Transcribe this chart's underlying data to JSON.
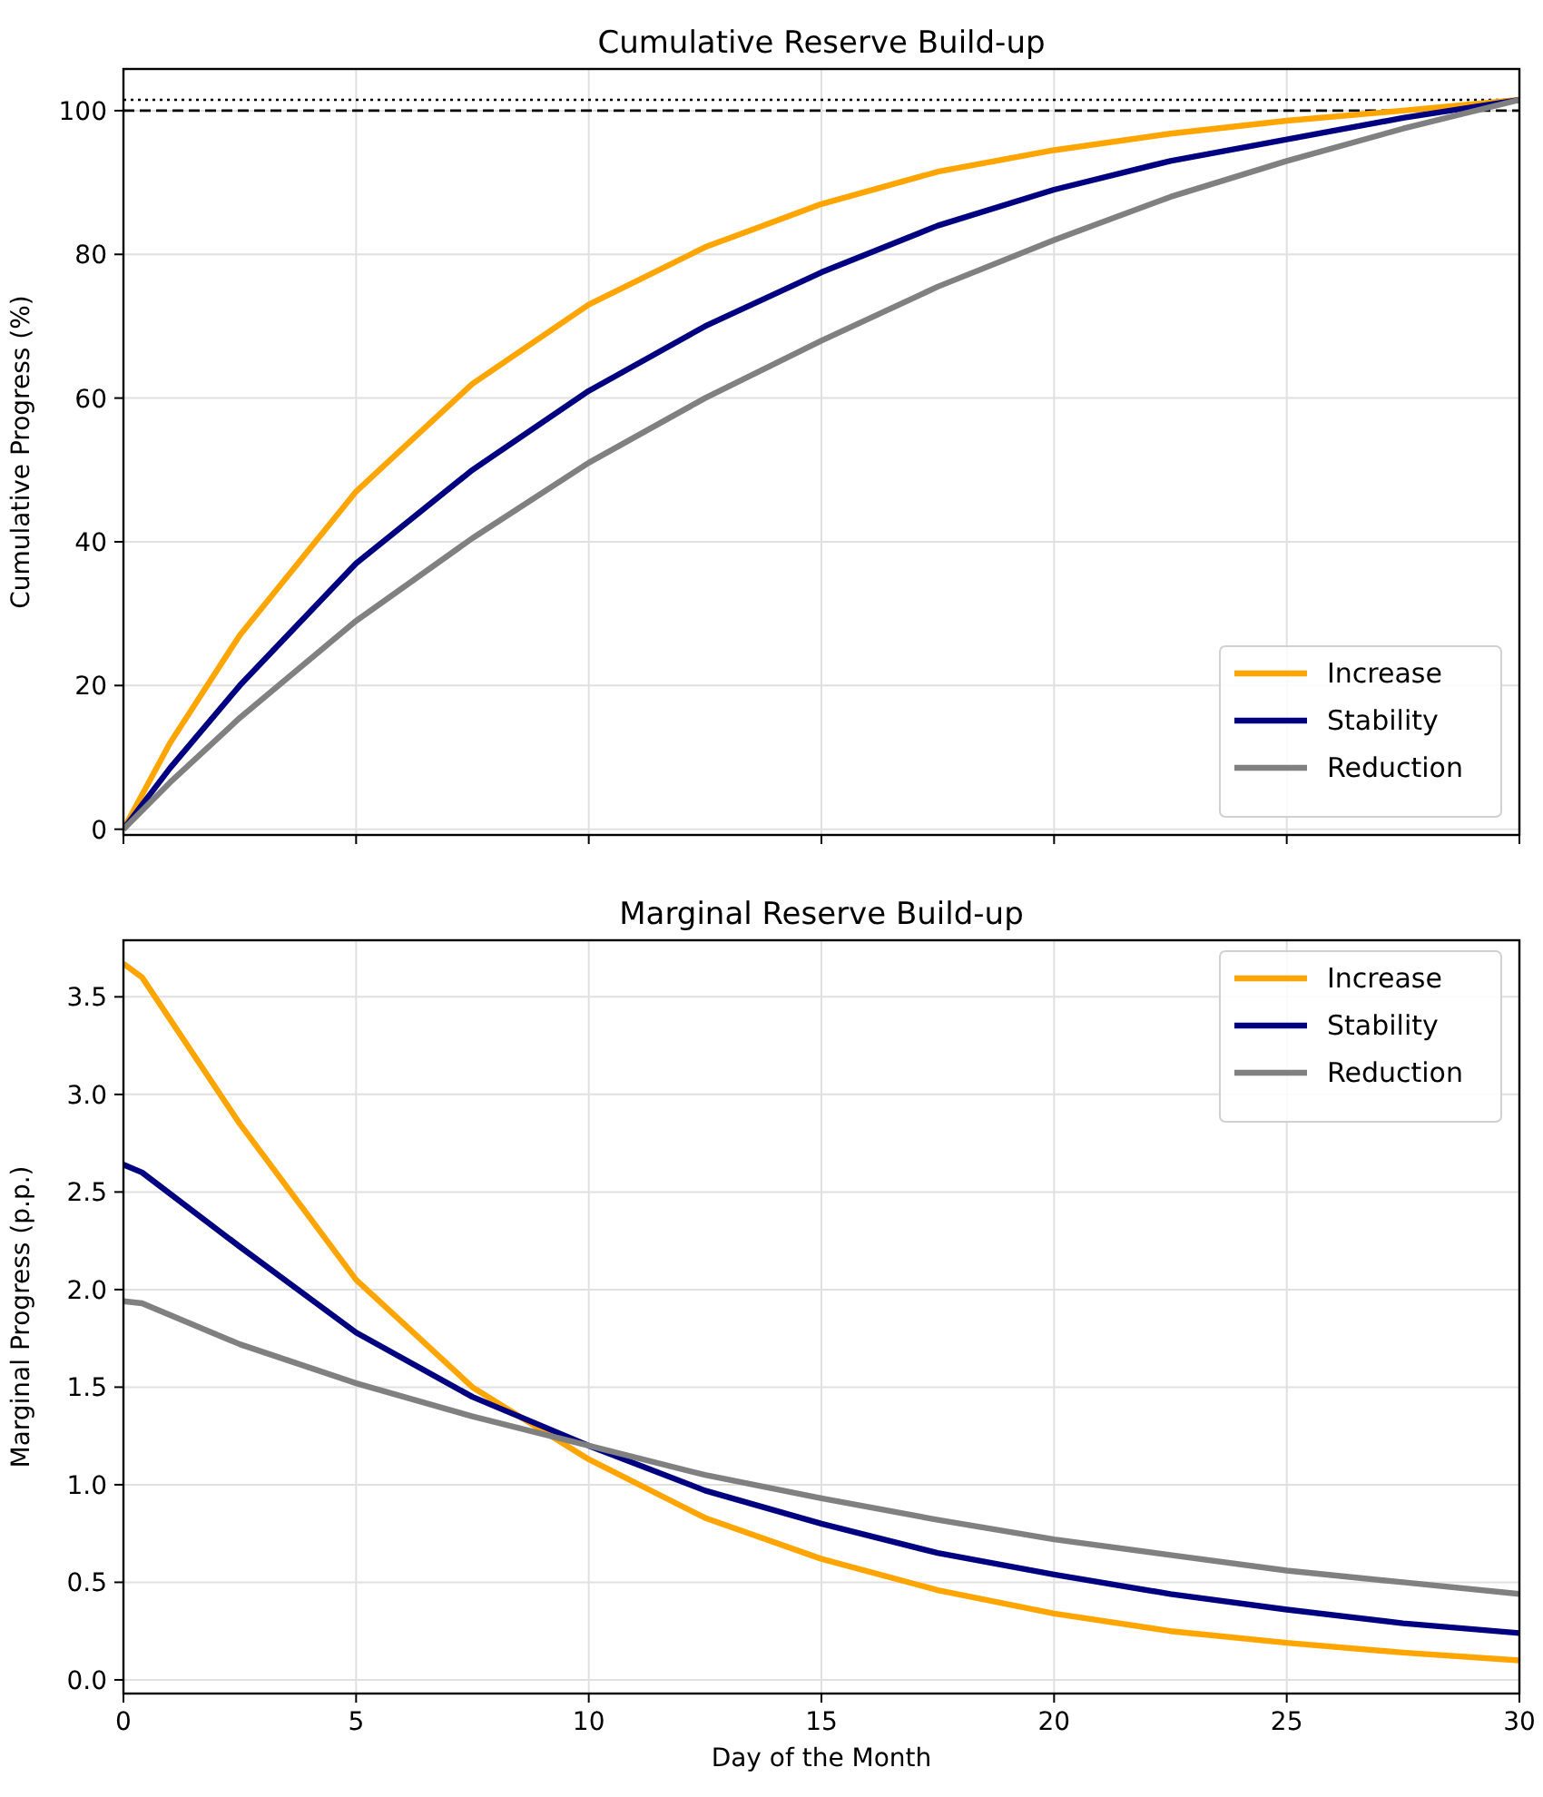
{
  "chart_data": [
    {
      "type": "line",
      "title": "Cumulative Reserve Build-up",
      "ylabel": "Cumulative Progress (%)",
      "x": [
        0,
        1,
        2.5,
        5,
        7.5,
        10,
        12.5,
        15,
        17.5,
        20,
        22.5,
        25,
        27.5,
        30
      ],
      "xlim": [
        0,
        30
      ],
      "xticks": [
        0,
        5,
        10,
        15,
        20,
        25,
        30
      ],
      "ylim": [
        -0.8,
        105.8
      ],
      "yticks": [
        0,
        20,
        40,
        60,
        80,
        100
      ],
      "tick_labels": "y",
      "grid": true,
      "legend": "bottom right",
      "line_style": "solid",
      "series": [
        {
          "name": "Increase",
          "color": "#ffa500",
          "values": [
            0,
            12,
            27,
            47,
            62,
            73,
            81,
            87,
            91.5,
            94.5,
            96.8,
            98.6,
            100,
            101.5
          ]
        },
        {
          "name": "Stability",
          "color": "#000080",
          "values": [
            0,
            8.5,
            20,
            37,
            50,
            61,
            70,
            77.5,
            84,
            89,
            93,
            96,
            99,
            101.5
          ]
        },
        {
          "name": "Reduction",
          "color": "#808080",
          "values": [
            0,
            6.5,
            15.5,
            29,
            40.5,
            51,
            60,
            68,
            75.5,
            82,
            88,
            93,
            97.5,
            101.5
          ]
        }
      ],
      "ref_lines": [
        {
          "axis": "y",
          "value": 100,
          "color": "#000000",
          "line_style": "dashed"
        },
        {
          "axis": "y",
          "value": 101.5,
          "color": "#000000",
          "line_style": "dotted"
        }
      ]
    },
    {
      "type": "line",
      "title": "Marginal Reserve Build-up",
      "xlabel": "Day of the Month",
      "ylabel": "Marginal Progress (p.p.)",
      "x": [
        0,
        0.4,
        2.5,
        5,
        7.5,
        10,
        12.5,
        15,
        17.5,
        20,
        22.5,
        25,
        27.5,
        30
      ],
      "xlim": [
        0,
        30
      ],
      "xticks": [
        0,
        5,
        10,
        15,
        20,
        25,
        30
      ],
      "ylim": [
        -0.07,
        3.79
      ],
      "yticks": [
        {
          "value": 0,
          "label": "0.0"
        },
        {
          "value": 0.5,
          "label": "0.5"
        },
        {
          "value": 1,
          "label": "1.0"
        },
        {
          "value": 1.5,
          "label": "1.5"
        },
        {
          "value": 2,
          "label": "2.0"
        },
        {
          "value": 2.5,
          "label": "2.5"
        },
        {
          "value": 3,
          "label": "3.0"
        },
        {
          "value": 3.5,
          "label": "3.5"
        }
      ],
      "grid": true,
      "legend": "top right",
      "line_style": "solid",
      "series": [
        {
          "name": "Increase",
          "color": "#ffa500",
          "values": [
            3.67,
            3.6,
            2.85,
            2.05,
            1.5,
            1.13,
            0.83,
            0.62,
            0.46,
            0.34,
            0.25,
            0.19,
            0.14,
            0.1
          ]
        },
        {
          "name": "Stability",
          "color": "#000080",
          "values": [
            2.64,
            2.6,
            2.22,
            1.78,
            1.45,
            1.2,
            0.97,
            0.8,
            0.65,
            0.54,
            0.44,
            0.36,
            0.29,
            0.24
          ]
        },
        {
          "name": "Reduction",
          "color": "#808080",
          "values": [
            1.94,
            1.93,
            1.72,
            1.52,
            1.35,
            1.2,
            1.05,
            0.93,
            0.82,
            0.72,
            0.64,
            0.56,
            0.5,
            0.44
          ]
        }
      ]
    }
  ]
}
